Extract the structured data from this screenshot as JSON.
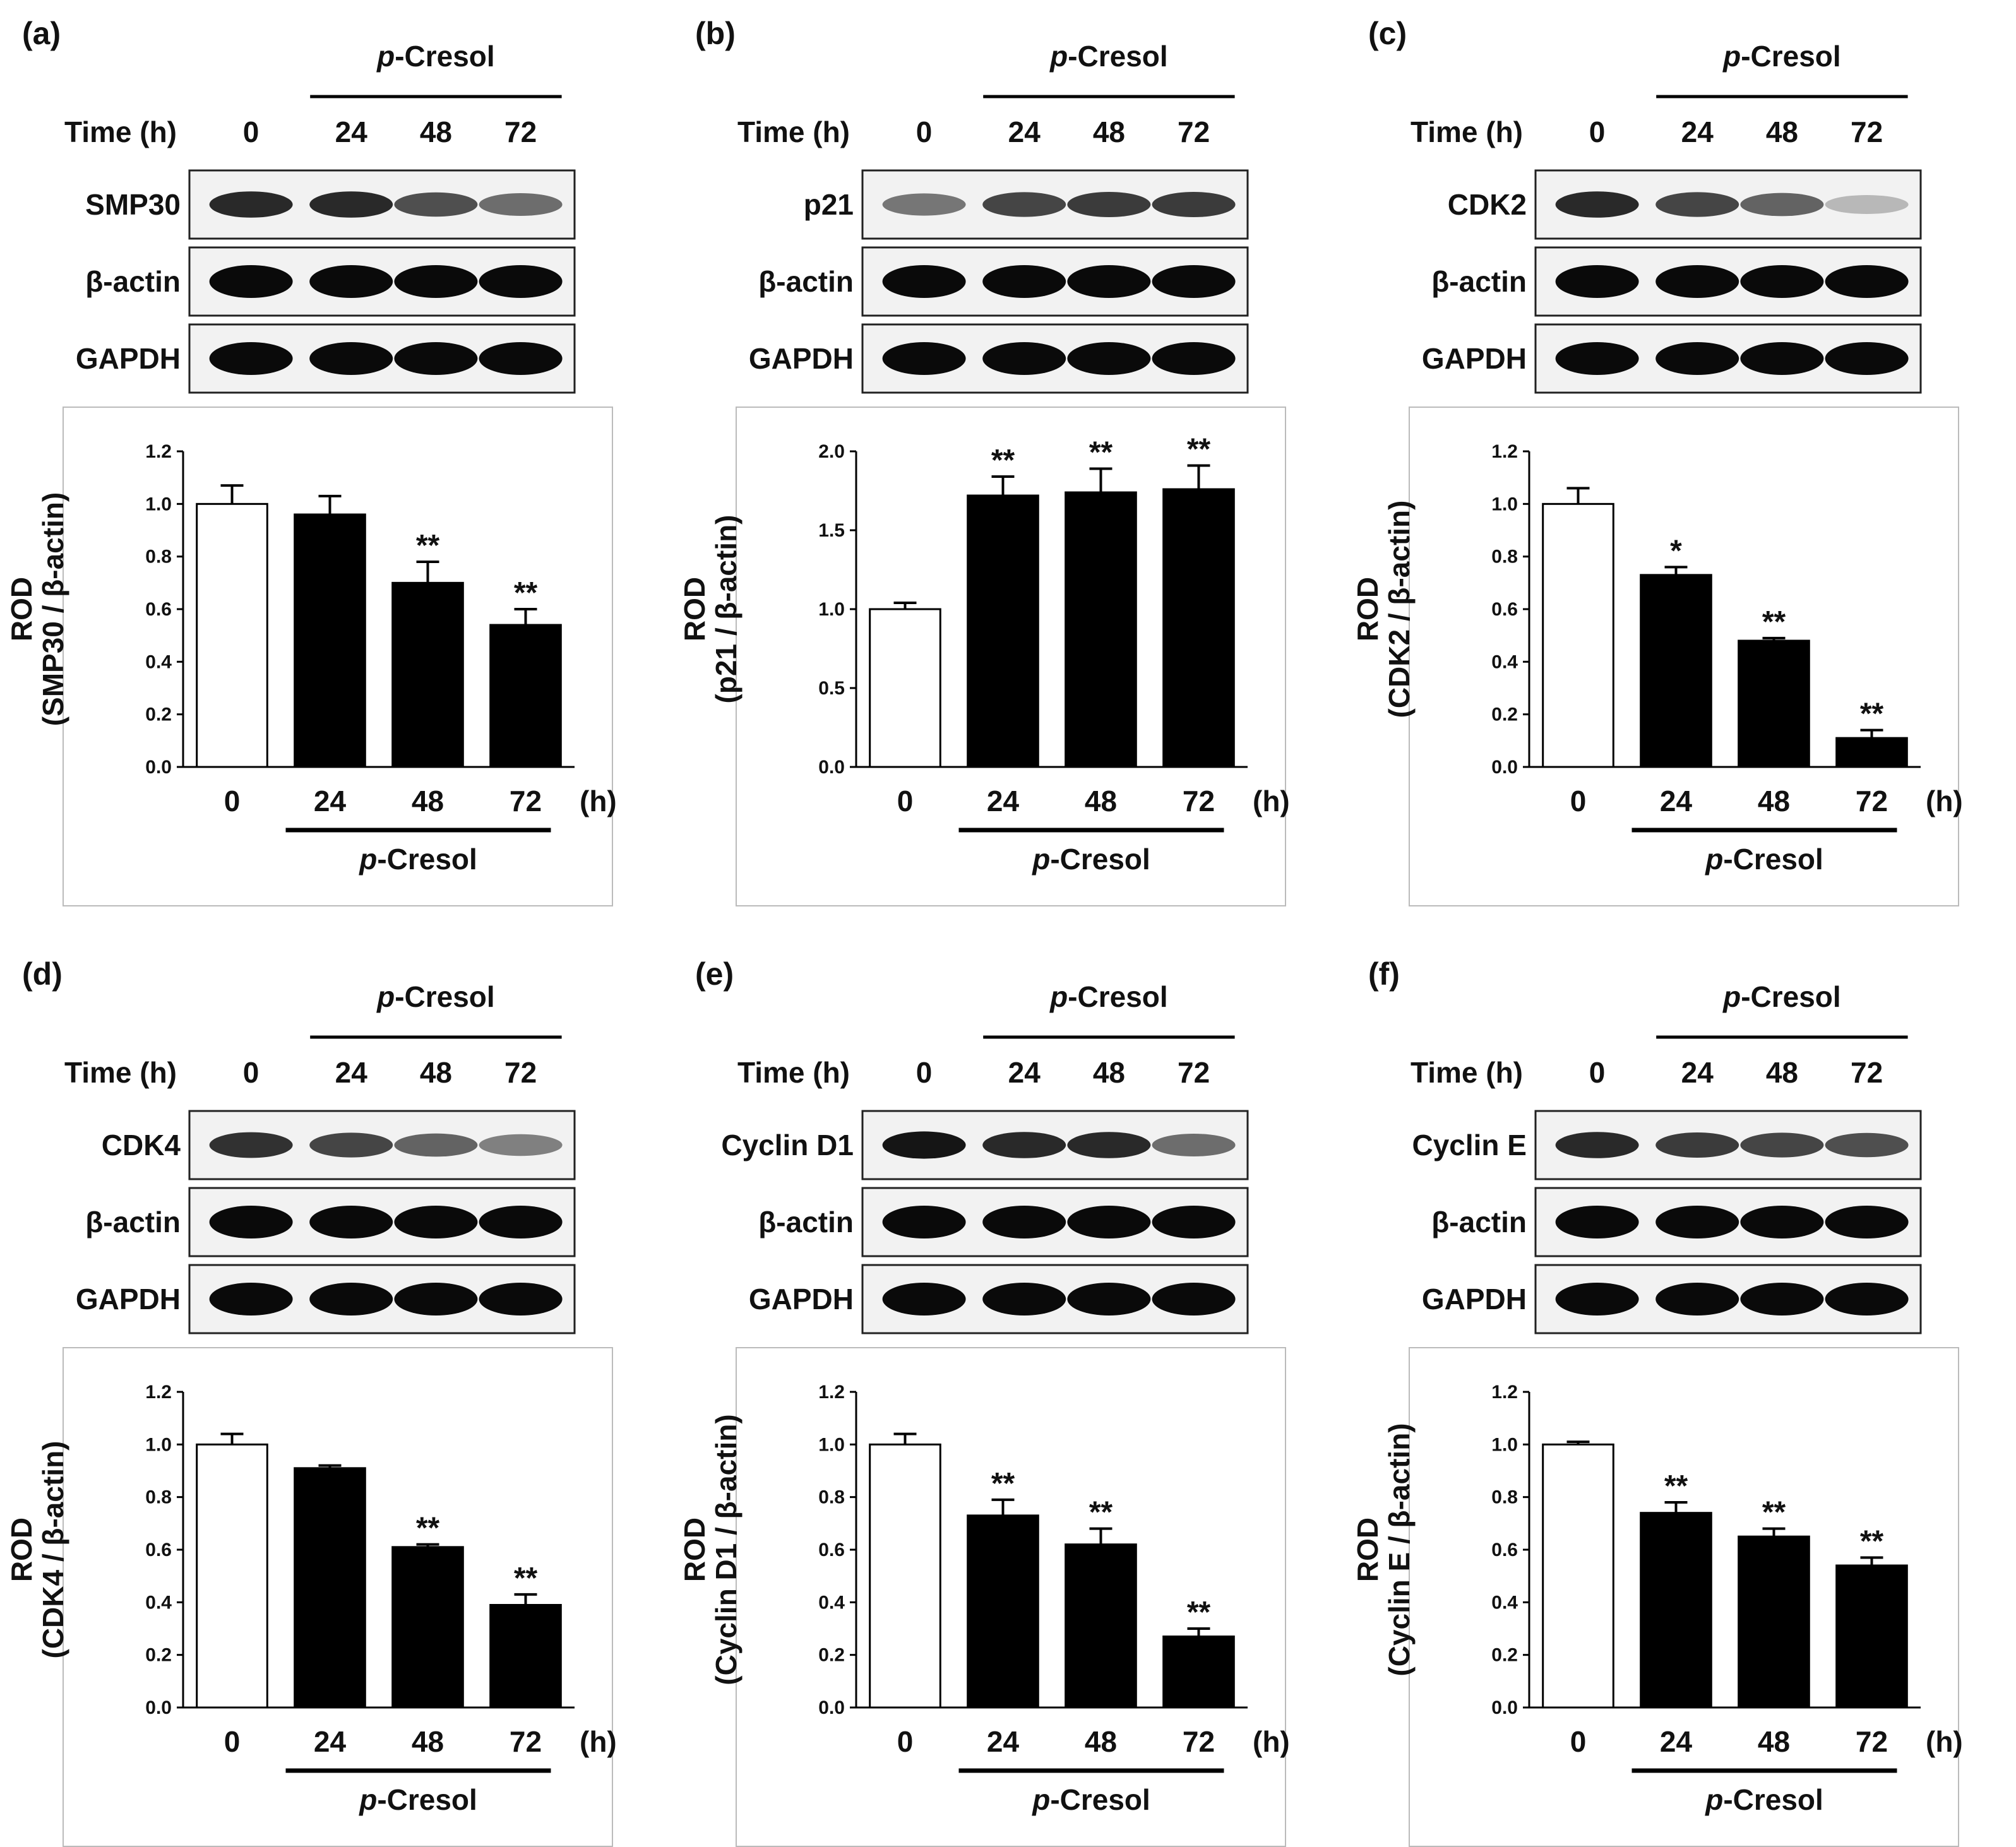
{
  "figure_title": "",
  "common": {
    "time_label": "Time (h)",
    "hours_unit": "(h)",
    "treatment_italic": "p",
    "treatment_rest": "-Cresol",
    "loading_controls": [
      "β-actin",
      "GAPDH"
    ],
    "lane_labels": [
      "0",
      "24",
      "48",
      "72"
    ]
  },
  "blots": [
    {
      "id": "a",
      "target": "SMP30",
      "band_intensity": [
        0.85,
        0.85,
        0.65,
        0.5
      ]
    },
    {
      "id": "b",
      "target": "p21",
      "band_intensity": [
        0.45,
        0.7,
        0.75,
        0.75
      ]
    },
    {
      "id": "c",
      "target": "CDK2",
      "band_intensity": [
        0.85,
        0.7,
        0.55,
        0.12
      ]
    },
    {
      "id": "d",
      "target": "CDK4",
      "band_intensity": [
        0.8,
        0.7,
        0.55,
        0.4
      ]
    },
    {
      "id": "e",
      "target": "Cyclin D1",
      "band_intensity": [
        0.95,
        0.85,
        0.85,
        0.5
      ]
    },
    {
      "id": "f",
      "target": "Cyclin E",
      "band_intensity": [
        0.85,
        0.75,
        0.7,
        0.65
      ]
    }
  ],
  "chart_data": [
    {
      "panel": "(a)",
      "type": "bar",
      "categories": [
        "0",
        "24",
        "48",
        "72"
      ],
      "values": [
        1.0,
        0.96,
        0.7,
        0.54
      ],
      "errors": [
        0.07,
        0.07,
        0.08,
        0.06
      ],
      "significance": [
        "",
        "",
        "**",
        "**"
      ],
      "fills": [
        "#ffffff",
        "#000000",
        "#000000",
        "#000000"
      ],
      "ylabel": [
        "ROD",
        "(SMP30 / β-actin)"
      ],
      "ylim": [
        0,
        1.2
      ],
      "yticks": [
        "0.0",
        "0.2",
        "0.4",
        "0.6",
        "0.8",
        "1.0",
        "1.2"
      ],
      "xunit": "(h)",
      "group_label": "p-Cresol"
    },
    {
      "panel": "(b)",
      "type": "bar",
      "categories": [
        "0",
        "24",
        "48",
        "72"
      ],
      "values": [
        1.0,
        1.72,
        1.74,
        1.76
      ],
      "errors": [
        0.04,
        0.12,
        0.15,
        0.15
      ],
      "significance": [
        "",
        "**",
        "**",
        "**"
      ],
      "fills": [
        "#ffffff",
        "#000000",
        "#000000",
        "#000000"
      ],
      "ylabel": [
        "ROD",
        "(p21 / β-actin)"
      ],
      "ylim": [
        0,
        2.0
      ],
      "yticks": [
        "0.0",
        "0.5",
        "1.0",
        "1.5",
        "2.0"
      ],
      "xunit": "(h)",
      "group_label": "p-Cresol"
    },
    {
      "panel": "(c)",
      "type": "bar",
      "categories": [
        "0",
        "24",
        "48",
        "72"
      ],
      "values": [
        1.0,
        0.73,
        0.48,
        0.11
      ],
      "errors": [
        0.06,
        0.03,
        0.01,
        0.03
      ],
      "significance": [
        "",
        "*",
        "**",
        "**"
      ],
      "fills": [
        "#ffffff",
        "#000000",
        "#000000",
        "#000000"
      ],
      "ylabel": [
        "ROD",
        "(CDK2 / β-actin)"
      ],
      "ylim": [
        0,
        1.2
      ],
      "yticks": [
        "0.0",
        "0.2",
        "0.4",
        "0.6",
        "0.8",
        "1.0",
        "1.2"
      ],
      "xunit": "(h)",
      "group_label": "p-Cresol"
    },
    {
      "panel": "(d)",
      "type": "bar",
      "categories": [
        "0",
        "24",
        "48",
        "72"
      ],
      "values": [
        1.0,
        0.91,
        0.61,
        0.39
      ],
      "errors": [
        0.04,
        0.01,
        0.01,
        0.04
      ],
      "significance": [
        "",
        "",
        "**",
        "**"
      ],
      "fills": [
        "#ffffff",
        "#000000",
        "#000000",
        "#000000"
      ],
      "ylabel": [
        "ROD",
        "(CDK4 / β-actin)"
      ],
      "ylim": [
        0,
        1.2
      ],
      "yticks": [
        "0.0",
        "0.2",
        "0.4",
        "0.6",
        "0.8",
        "1.0",
        "1.2"
      ],
      "xunit": "(h)",
      "group_label": "p-Cresol"
    },
    {
      "panel": "(e)",
      "type": "bar",
      "categories": [
        "0",
        "24",
        "48",
        "72"
      ],
      "values": [
        1.0,
        0.73,
        0.62,
        0.27
      ],
      "errors": [
        0.04,
        0.06,
        0.06,
        0.03
      ],
      "significance": [
        "",
        "**",
        "**",
        "**"
      ],
      "fills": [
        "#ffffff",
        "#000000",
        "#000000",
        "#000000"
      ],
      "ylabel": [
        "ROD",
        "(Cyclin D1 / β-actin)"
      ],
      "ylim": [
        0,
        1.2
      ],
      "yticks": [
        "0.0",
        "0.2",
        "0.4",
        "0.6",
        "0.8",
        "1.0",
        "1.2"
      ],
      "xunit": "(h)",
      "group_label": "p-Cresol"
    },
    {
      "panel": "(f)",
      "type": "bar",
      "categories": [
        "0",
        "24",
        "48",
        "72"
      ],
      "values": [
        1.0,
        0.74,
        0.65,
        0.54
      ],
      "errors": [
        0.01,
        0.04,
        0.03,
        0.03
      ],
      "significance": [
        "",
        "**",
        "**",
        "**"
      ],
      "fills": [
        "#ffffff",
        "#000000",
        "#000000",
        "#000000"
      ],
      "ylabel": [
        "ROD",
        "(Cyclin E / β-actin)"
      ],
      "ylim": [
        0,
        1.2
      ],
      "yticks": [
        "0.0",
        "0.2",
        "0.4",
        "0.6",
        "0.8",
        "1.0",
        "1.2"
      ],
      "xunit": "(h)",
      "group_label": "p-Cresol"
    }
  ]
}
